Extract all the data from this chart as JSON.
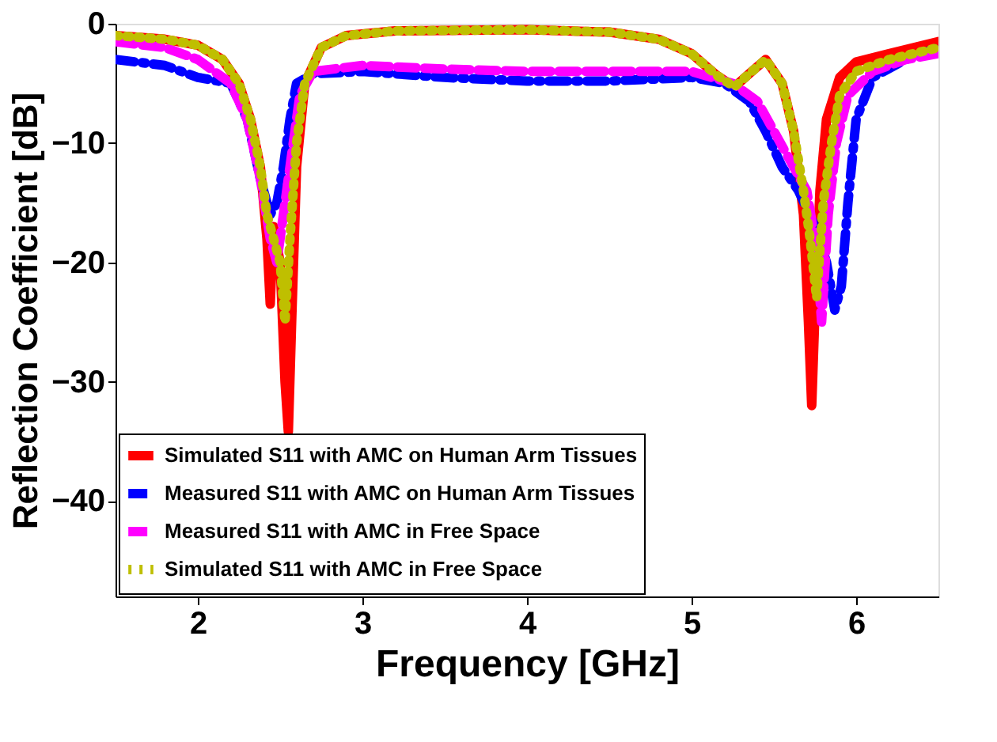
{
  "chart_data": {
    "type": "line",
    "xlabel": "Frequency [GHz]",
    "ylabel": "Reflection Coefficient [dB]",
    "xlim": [
      1.5,
      6.5
    ],
    "xticks": [
      2,
      3,
      4,
      5,
      6
    ],
    "ylim": [
      -48,
      0
    ],
    "yticks": [
      0,
      -10,
      -20,
      -30,
      -40
    ],
    "grid": false,
    "legend": "bottom left",
    "marker": "none",
    "series": [
      {
        "name": "Simulated S11 with AMC on Human Arm Tissues",
        "color": "#ff0000",
        "line_style": "solid",
        "x": [
          1.5,
          1.8,
          2.0,
          2.15,
          2.25,
          2.32,
          2.38,
          2.42,
          2.44,
          2.46,
          2.5,
          2.53,
          2.55,
          2.57,
          2.6,
          2.65,
          2.75,
          2.9,
          3.2,
          4.0,
          4.5,
          4.8,
          5.0,
          5.15,
          5.26,
          5.35,
          5.45,
          5.55,
          5.62,
          5.68,
          5.71,
          5.73,
          5.75,
          5.78,
          5.82,
          5.9,
          6.0,
          6.2,
          6.5
        ],
        "values": [
          -1,
          -1.3,
          -1.8,
          -3,
          -5,
          -8,
          -12,
          -18,
          -23.5,
          -17,
          -20,
          -30,
          -34.2,
          -25,
          -12,
          -5,
          -2,
          -1,
          -0.6,
          -0.5,
          -0.7,
          -1.3,
          -2.5,
          -4.3,
          -5.3,
          -4.2,
          -3,
          -5,
          -9,
          -16,
          -25,
          -32,
          -24,
          -14,
          -8,
          -4.5,
          -3.2,
          -2.5,
          -1.5
        ]
      },
      {
        "name": "Measured S11 with AMC on Human Arm Tissues",
        "color": "#0000ff",
        "line_style": "dashdot",
        "x": [
          1.5,
          1.8,
          2.0,
          2.2,
          2.3,
          2.38,
          2.44,
          2.48,
          2.52,
          2.56,
          2.6,
          2.7,
          3.0,
          3.5,
          4.0,
          4.5,
          5.0,
          5.2,
          5.35,
          5.45,
          5.55,
          5.65,
          5.75,
          5.82,
          5.87,
          5.91,
          5.95,
          6.0,
          6.1,
          6.3,
          6.5
        ],
        "values": [
          -3,
          -3.5,
          -4.5,
          -5,
          -8,
          -13,
          -16,
          -15,
          -12,
          -8,
          -5,
          -4.2,
          -4,
          -4.5,
          -4.8,
          -4.8,
          -4.5,
          -5,
          -6.5,
          -9,
          -12,
          -14,
          -17,
          -20,
          -24,
          -22,
          -15,
          -8,
          -4.5,
          -3,
          -2
        ]
      },
      {
        "name": "Measured S11 with AMC in Free Space",
        "color": "#ff00ff",
        "line_style": "dashed",
        "x": [
          1.5,
          1.8,
          2.0,
          2.2,
          2.3,
          2.38,
          2.44,
          2.48,
          2.52,
          2.56,
          2.62,
          2.7,
          3.0,
          3.5,
          4.0,
          4.5,
          5.0,
          5.25,
          5.4,
          5.5,
          5.6,
          5.7,
          5.76,
          5.79,
          5.83,
          5.88,
          5.95,
          6.1,
          6.3,
          6.5
        ],
        "values": [
          -1.5,
          -2,
          -3,
          -5,
          -8,
          -13,
          -18,
          -20,
          -16,
          -12,
          -6,
          -4,
          -3.5,
          -3.8,
          -4,
          -4,
          -4,
          -5,
          -6.5,
          -9,
          -11.5,
          -14,
          -19,
          -25,
          -16,
          -10,
          -6,
          -4,
          -3,
          -2.5
        ]
      },
      {
        "name": "Simulated S11 with AMC in Free Space",
        "color": "#bfbf00",
        "line_style": "dotted",
        "x": [
          1.5,
          1.8,
          2.0,
          2.15,
          2.25,
          2.32,
          2.38,
          2.42,
          2.46,
          2.5,
          2.53,
          2.56,
          2.6,
          2.65,
          2.75,
          2.9,
          3.2,
          4.0,
          4.5,
          4.8,
          5.0,
          5.15,
          5.26,
          5.35,
          5.45,
          5.55,
          5.62,
          5.68,
          5.72,
          5.76,
          5.8,
          5.85,
          5.9,
          6.0,
          6.2,
          6.5
        ],
        "values": [
          -1,
          -1.3,
          -1.8,
          -3,
          -5,
          -8,
          -12,
          -16,
          -18,
          -20,
          -25,
          -18,
          -10,
          -5,
          -2,
          -1,
          -0.6,
          -0.5,
          -0.7,
          -1.3,
          -2.5,
          -4.3,
          -5.3,
          -4.2,
          -3,
          -5,
          -9,
          -14,
          -18,
          -23,
          -15,
          -10,
          -6,
          -4,
          -3,
          -2
        ]
      }
    ]
  }
}
